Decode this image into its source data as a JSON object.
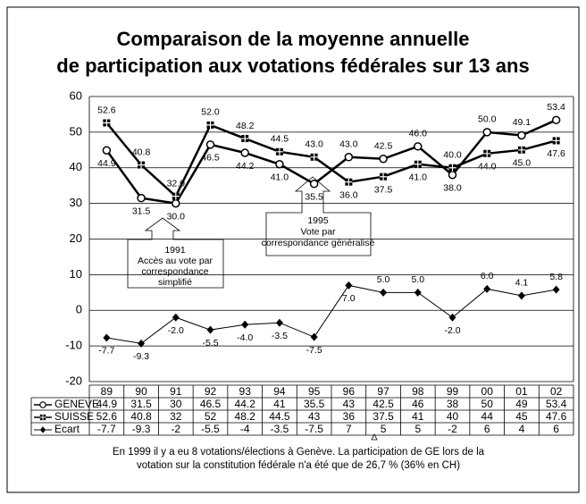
{
  "chart_data": {
    "type": "line",
    "title_lines": [
      "Comparaison de la moyenne annuelle",
      "de participation aux votations fédérales sur 13 ans"
    ],
    "categories": [
      "89",
      "90",
      "91",
      "92",
      "93",
      "94",
      "95",
      "96",
      "97",
      "98",
      "99",
      "00",
      "01",
      "02"
    ],
    "ylim": [
      -20,
      60
    ],
    "yticks": [
      -20,
      -10,
      0,
      10,
      20,
      30,
      40,
      50,
      60
    ],
    "grid": true,
    "series": [
      {
        "name": "GENEVE",
        "color": "#000000",
        "marker": "circle",
        "values": [
          44.9,
          31.5,
          30,
          46.5,
          44.2,
          41,
          35.5,
          43,
          42.5,
          46,
          38,
          50,
          49.1,
          53.4
        ],
        "value_labels": [
          "44.9",
          "31.5",
          "30.0",
          "46.5",
          "44.2",
          "41.0",
          "35.5",
          "43.0",
          "42.5",
          "46.0",
          "38.0",
          "50.0",
          "49.1",
          "53.4"
        ],
        "table": [
          "44.9",
          "31.5",
          "30",
          "46.5",
          "44.2",
          "41",
          "35.5",
          "43",
          "42.5",
          "46",
          "38",
          "50",
          "49",
          "53.4"
        ]
      },
      {
        "name": "SUISSE",
        "color": "#000000",
        "marker": "square",
        "values": [
          52.6,
          40.8,
          32,
          52,
          48.2,
          44.5,
          43,
          36,
          37.5,
          41,
          40,
          44,
          45,
          47.6
        ],
        "value_labels": [
          "52.6",
          "40.8",
          "32.0",
          "52.0",
          "48.2",
          "44.5",
          "43.0",
          "36.0",
          "37.5",
          "41.0",
          "40.0",
          "44.0",
          "45.0",
          "47.6"
        ],
        "table": [
          "52.6",
          "40.8",
          "32",
          "52",
          "48.2",
          "44.5",
          "43",
          "36",
          "37.5",
          "41",
          "40",
          "44",
          "45",
          "47.6"
        ]
      },
      {
        "name": "Ecart",
        "color": "#000000",
        "marker": "diamond",
        "values": [
          -7.7,
          -9.3,
          -2,
          -5.5,
          -4,
          -3.5,
          -7.5,
          7,
          5,
          5,
          -2,
          6,
          4.1,
          5.8
        ],
        "value_labels": [
          "-7.7",
          "-9.3",
          "-2.0",
          "-5.5",
          "-4.0",
          "-3.5",
          "-7.5",
          "7.0",
          "5.0",
          "5.0",
          "-2.0",
          "6.0",
          "4.1",
          "5.8"
        ],
        "table": [
          "-7.7",
          "-9.3",
          "-2",
          "-5.5",
          "-4",
          "-3.5",
          "-7.5",
          "7",
          "5",
          "5",
          "-2",
          "6",
          "4",
          "6"
        ]
      }
    ],
    "annotations": [
      {
        "lines": [
          "1991",
          "Accès au vote par",
          "correspondance",
          "simplifié"
        ]
      },
      {
        "lines": [
          "1995",
          "Vote par",
          "correspondance généralisé"
        ]
      }
    ],
    "footnote_lines": [
      "En 1999 il y a eu 8 votations/élections à Genève. La participation de GE lors de la",
      "votation sur la constitution fédérale n'a été que de 26,7 % (36% en CH)"
    ]
  }
}
